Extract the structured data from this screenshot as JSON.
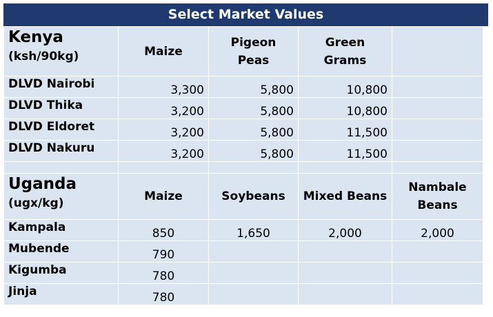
{
  "title": "Select Market Values",
  "kenya": {
    "name": "Kenya",
    "unit": "(ksh/90kg)",
    "columns": [
      "Maize",
      "Pigeon Peas",
      "Green Grams",
      ""
    ],
    "rows": [
      {
        "location": "DLVD Nairobi",
        "values": [
          "3,300",
          "5,800",
          "10,800",
          ""
        ]
      },
      {
        "location": "DLVD Thika",
        "values": [
          "3,200",
          "5,800",
          "10,800",
          ""
        ]
      },
      {
        "location": "DLVD Eldoret",
        "values": [
          "3,200",
          "5,800",
          "11,500",
          ""
        ]
      },
      {
        "location": "DLVD Nakuru",
        "values": [
          "3,200",
          "5,800",
          "11,500",
          ""
        ]
      }
    ]
  },
  "uganda": {
    "name": "Uganda",
    "unit": "(ugx/kg)",
    "columns": [
      "Maize",
      "Soybeans",
      "Mixed Beans",
      "Nambale Beans"
    ],
    "rows": [
      {
        "location": "Kampala",
        "values": [
          "850",
          "1,650",
          "2,000",
          "2,000"
        ]
      },
      {
        "location": "Mubende",
        "values": [
          "790",
          "",
          "",
          ""
        ]
      },
      {
        "location": "Kigumba",
        "values": [
          "780",
          "",
          "",
          ""
        ]
      },
      {
        "location": "Jinja",
        "values": [
          "780",
          "",
          "",
          ""
        ]
      }
    ]
  }
}
